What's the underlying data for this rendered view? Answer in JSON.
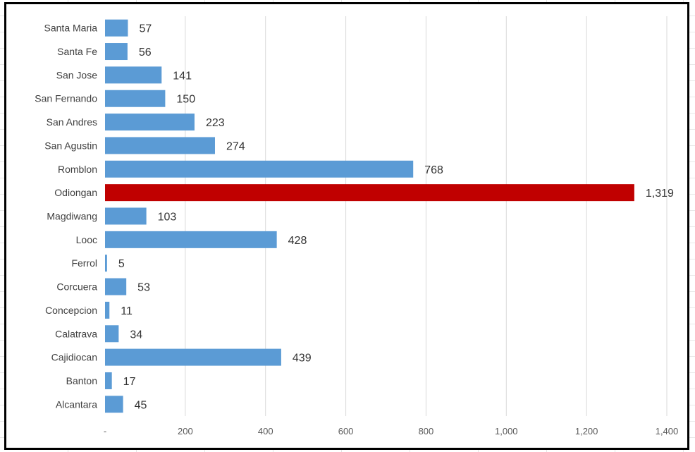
{
  "chart_data": {
    "type": "bar",
    "orientation": "horizontal",
    "title": "",
    "xlabel": "",
    "ylabel": "",
    "xlim": [
      0,
      1400
    ],
    "x_ticks": [
      0,
      200,
      400,
      600,
      800,
      1000,
      1200,
      1400
    ],
    "x_tick_labels": [
      "-",
      "200",
      "400",
      "600",
      "800",
      "1,000",
      "1,200",
      "1,400"
    ],
    "grid": "vertical",
    "legend": "none",
    "categories": [
      "Santa Maria",
      "Santa Fe",
      "San Jose",
      "San Fernando",
      "San Andres",
      "San Agustin",
      "Romblon",
      "Odiongan",
      "Magdiwang",
      "Looc",
      "Ferrol",
      "Corcuera",
      "Concepcion",
      "Calatrava",
      "Cajidiocan",
      "Banton",
      "Alcantara"
    ],
    "values": [
      57,
      56,
      141,
      150,
      223,
      274,
      768,
      1319,
      103,
      428,
      5,
      53,
      11,
      34,
      439,
      17,
      45
    ],
    "value_labels": [
      "57",
      "56",
      "141",
      "150",
      "223",
      "274",
      "768",
      "1,319",
      "103",
      "428",
      "5",
      "53",
      "11",
      "34",
      "439",
      "17",
      "45"
    ],
    "bar_color": "#5b9bd5",
    "highlight_color": "#c00000",
    "highlight_category": "Odiongan"
  }
}
